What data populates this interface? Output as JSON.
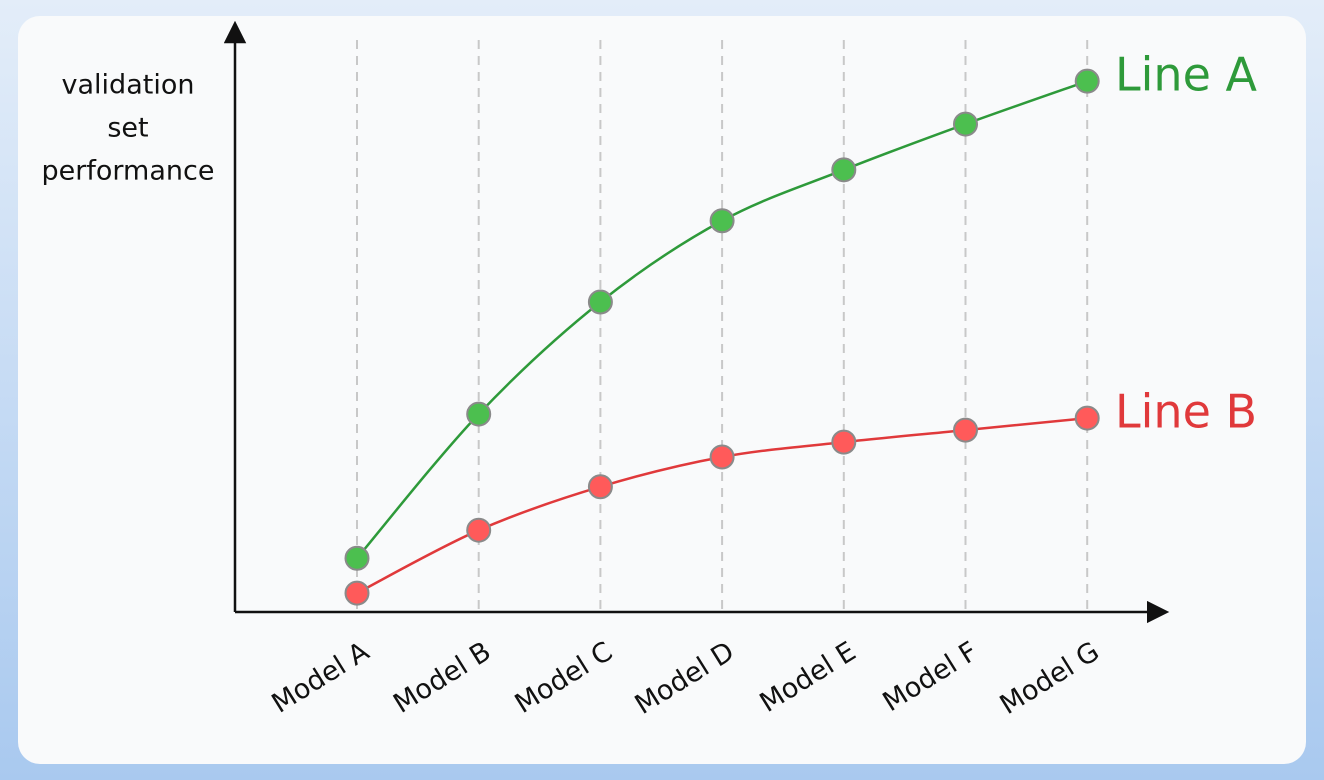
{
  "chart_data": {
    "type": "line",
    "y_label": [
      "validation",
      "set",
      "performance"
    ],
    "categories": [
      "Model A",
      "Model B",
      "Model C",
      "Model D",
      "Model E",
      "Model F",
      "Model G"
    ],
    "ylim": [
      0,
      100
    ],
    "grid": true,
    "series": [
      {
        "name": "Line A",
        "color": "#2e9a3a",
        "marker_color": "#4cbf4f",
        "values": [
          9.4,
          34.6,
          54.2,
          68.4,
          77.3,
          85.3,
          92.8
        ]
      },
      {
        "name": "Line B",
        "color": "#e0393b",
        "marker_color": "#ff5a5a",
        "values": [
          3.3,
          14.3,
          21.9,
          27.1,
          29.7,
          31.8,
          33.9
        ]
      }
    ]
  }
}
